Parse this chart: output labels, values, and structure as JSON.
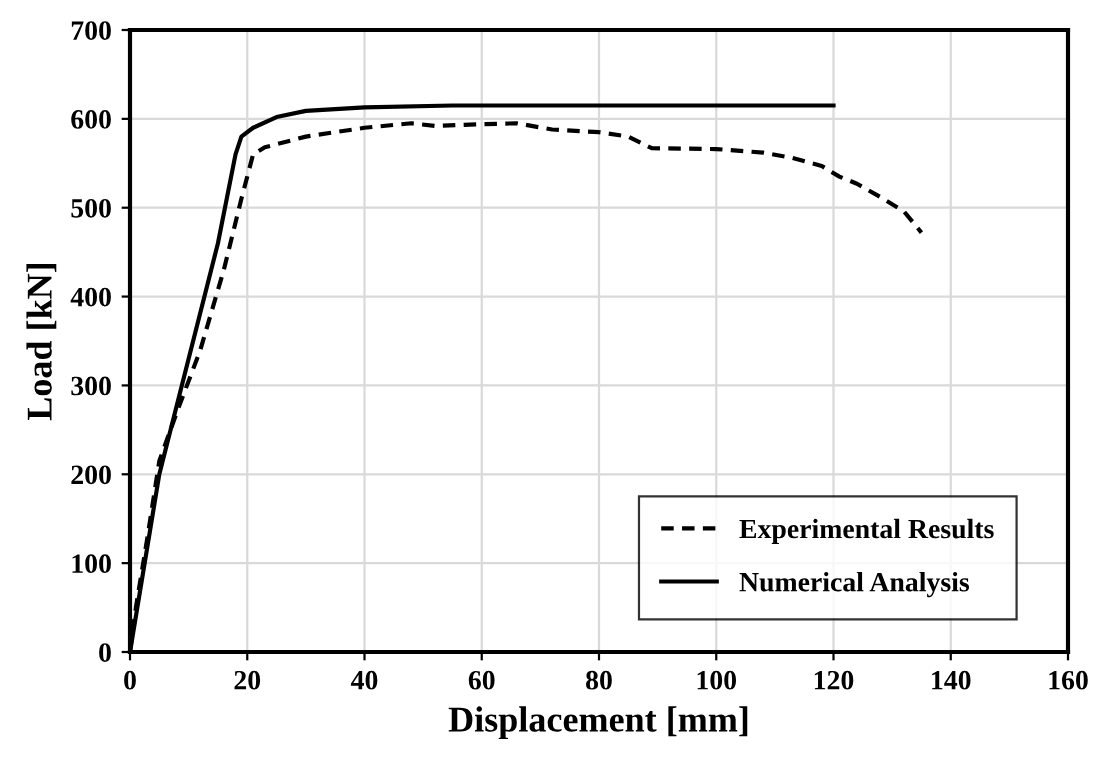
{
  "chart_data": {
    "type": "line",
    "xlabel": "Displacement [mm]",
    "ylabel": "Load [kN]",
    "xlim": [
      0,
      160
    ],
    "xticks": [
      0,
      20,
      40,
      60,
      80,
      100,
      120,
      140,
      160
    ],
    "ylim": [
      0,
      700
    ],
    "yticks": [
      0,
      100,
      200,
      300,
      400,
      500,
      600,
      700
    ],
    "grid": true,
    "legend": "bottom right",
    "marker": "none",
    "series": [
      {
        "name": "Experimental Results",
        "color": "#000000",
        "line_style": "dashed",
        "x": [
          0,
          1,
          3,
          5,
          8,
          12,
          16,
          19,
          21,
          23,
          30,
          40,
          48,
          52,
          60,
          66,
          72,
          80,
          85,
          89,
          100,
          108,
          113,
          118,
          121,
          124,
          128,
          132,
          135
        ],
        "values": [
          0,
          50,
          130,
          215,
          270,
          340,
          430,
          510,
          560,
          568,
          580,
          590,
          595,
          592,
          594,
          595,
          588,
          585,
          580,
          567,
          566,
          562,
          556,
          547,
          535,
          527,
          512,
          496,
          472
        ]
      },
      {
        "name": "Numerical Analysis",
        "color": "#000000",
        "line_style": "solid",
        "x": [
          0,
          5,
          10,
          15,
          18,
          19,
          21,
          25,
          30,
          40,
          55,
          120
        ],
        "values": [
          0,
          200,
          330,
          460,
          560,
          580,
          590,
          602,
          609,
          613,
          615,
          615
        ]
      }
    ]
  }
}
